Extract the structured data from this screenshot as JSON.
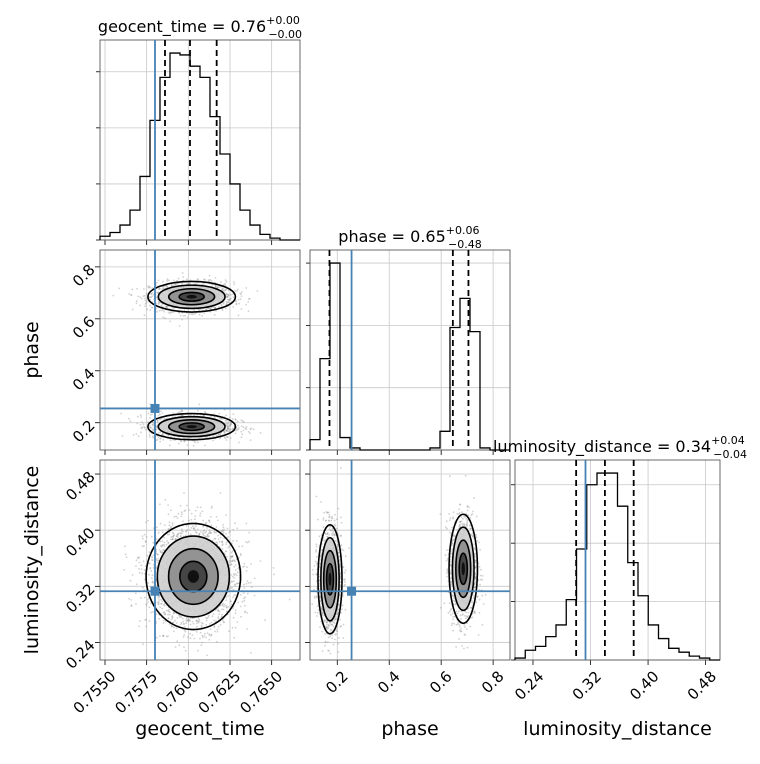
{
  "chart_data": {
    "type": "corner",
    "parameters": [
      {
        "name": "geocent_time",
        "xlabel": "geocent_time",
        "median": 0.76,
        "plus": "0.00",
        "minus": "0.00",
        "title_text": "geocent_time = 0.76",
        "title_sup": "+0.00",
        "title_sub": "−0.00",
        "range": [
          0.7547,
          0.7667
        ],
        "ticks": [
          0.755,
          0.7575,
          0.76,
          0.7625,
          0.765
        ],
        "tick_labels": [
          "0.7550",
          "0.7575",
          "0.7600",
          "0.7625",
          "0.7650"
        ],
        "truth": 0.758,
        "quantiles": [
          0.7586,
          0.7601,
          0.7617
        ]
      },
      {
        "name": "phase",
        "xlabel": "phase",
        "ylabel": "phase",
        "median": 0.65,
        "plus": "0.06",
        "minus": "0.48",
        "title_text": "phase = 0.65",
        "title_sup": "+0.06",
        "title_sub": "−0.48",
        "range": [
          0.095,
          0.865
        ],
        "ticks": [
          0.2,
          0.4,
          0.6,
          0.8
        ],
        "tick_labels": [
          "0.2",
          "0.4",
          "0.6",
          "0.8"
        ],
        "truth": 0.255,
        "quantiles": [
          0.17,
          0.645,
          0.705
        ]
      },
      {
        "name": "luminosity_distance",
        "xlabel": "luminosity_distance",
        "ylabel": "luminosity_distance",
        "median": 0.34,
        "plus": "0.04",
        "minus": "0.04",
        "title_text": "luminosity_distance = 0.34",
        "title_sup": "+0.04",
        "title_sub": "−0.04",
        "range": [
          0.215,
          0.5
        ],
        "ticks": [
          0.24,
          0.32,
          0.4,
          0.48
        ],
        "tick_labels": [
          "0.24",
          "0.32",
          "0.40",
          "0.48"
        ],
        "truth": 0.313,
        "quantiles": [
          0.3,
          0.34,
          0.38
        ]
      }
    ],
    "histograms": {
      "geocent_time": {
        "edges": [
          0.7547,
          0.7553,
          0.7559,
          0.7565,
          0.7571,
          0.7577,
          0.7583,
          0.7589,
          0.7595,
          0.7601,
          0.7607,
          0.7613,
          0.7619,
          0.7625,
          0.7631,
          0.7637,
          0.7643,
          0.7649,
          0.7655,
          0.7661,
          0.7667
        ],
        "counts": [
          2,
          4,
          8,
          16,
          34,
          64,
          87,
          100,
          99,
          93,
          87,
          66,
          46,
          30,
          16,
          8,
          3,
          1,
          0,
          0
        ]
      },
      "phase": {
        "edges": [
          0.095,
          0.1335,
          0.172,
          0.2105,
          0.249,
          0.2875,
          0.326,
          0.3645,
          0.403,
          0.4415,
          0.48,
          0.5185,
          0.557,
          0.5955,
          0.634,
          0.6725,
          0.711,
          0.7495,
          0.788,
          0.8265,
          0.865
        ],
        "counts": [
          5,
          44,
          90,
          6,
          1,
          0,
          0,
          0,
          0,
          0,
          0,
          0,
          1,
          9,
          59,
          73,
          57,
          1,
          0,
          0
        ]
      },
      "luminosity_distance": {
        "edges": [
          0.215,
          0.22925,
          0.2435,
          0.25775,
          0.272,
          0.28625,
          0.3005,
          0.31475,
          0.329,
          0.34325,
          0.3575,
          0.37175,
          0.386,
          0.40025,
          0.4145,
          0.42875,
          0.443,
          0.45725,
          0.4715,
          0.48575,
          0.5
        ],
        "counts": [
          1,
          5,
          7,
          12,
          18,
          31,
          57,
          90,
          96,
          96,
          79,
          50,
          33,
          18,
          11,
          6,
          4,
          2,
          1,
          0
        ]
      }
    },
    "grid": true
  }
}
